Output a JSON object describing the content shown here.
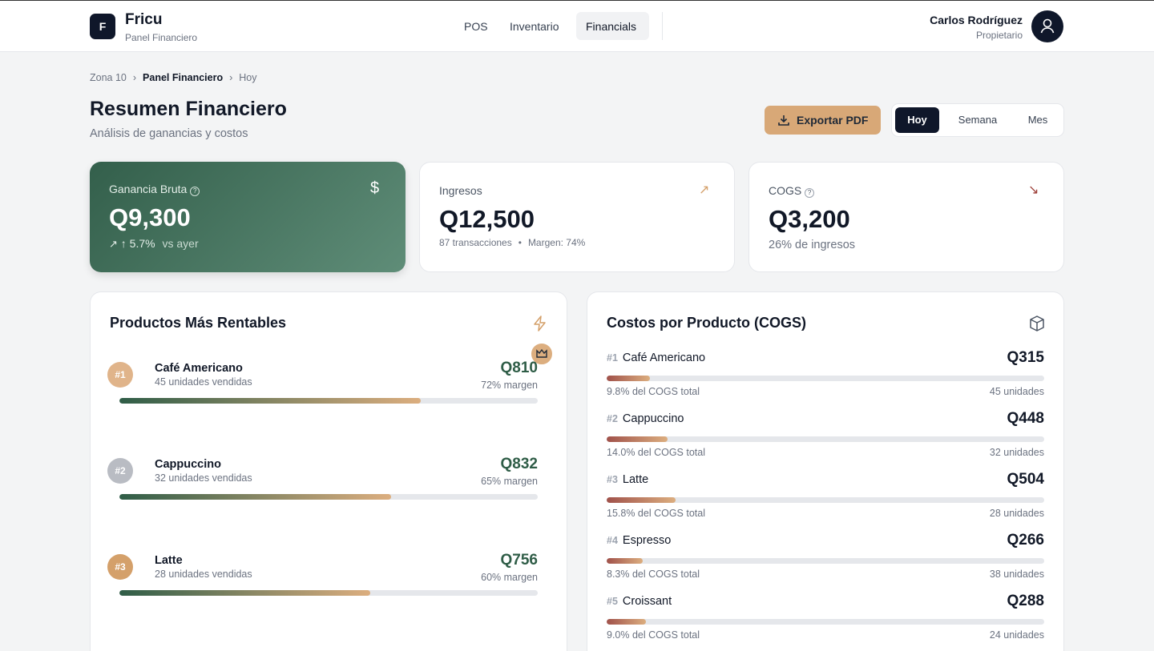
{
  "header": {
    "logo": "F",
    "brand": "Fricu",
    "subtitle": "Panel Financiero",
    "nav": [
      "POS",
      "Inventario",
      "Financials"
    ],
    "user": "Carlos Rodríguez",
    "role": "Propietario"
  },
  "breadcrumb": [
    "Zona 10",
    "Panel Financiero",
    "Hoy"
  ],
  "page": {
    "title": "Resumen Financiero",
    "subtitle": "Análisis de ganancias y costos",
    "export": "Exportar PDF",
    "periods": [
      "Hoy",
      "Semana",
      "Mes"
    ]
  },
  "cards": {
    "gross": {
      "label": "Ganancia Bruta",
      "value": "Q9,300",
      "change": "↑ 5.7%",
      "compare": "vs ayer"
    },
    "income": {
      "label": "Ingresos",
      "value": "Q12,500",
      "transactions": "87 transacciones",
      "margin": "Margen: 74%"
    },
    "cogs": {
      "label": "COGS",
      "value": "Q3,200",
      "share": "26% de ingresos"
    }
  },
  "top_products": {
    "title": "Productos Más Rentables",
    "items": [
      {
        "rank": "#1",
        "name": "Café Americano",
        "units": "45 unidades vendidas",
        "amount": "Q810",
        "margin": {
          "value": 72,
          "label": "72% margen"
        }
      },
      {
        "rank": "#2",
        "name": "Cappuccino",
        "units": "32 unidades vendidas",
        "amount": "Q832",
        "margin": {
          "value": 65,
          "label": "65% margen"
        }
      },
      {
        "rank": "#3",
        "name": "Latte",
        "units": "28 unidades vendidas",
        "amount": "Q756",
        "margin": {
          "value": 60,
          "label": "60% margen"
        }
      }
    ]
  },
  "cogs_products": {
    "title": "Costos por Producto (COGS)",
    "items": [
      {
        "rank": "#1",
        "name": "Café Americano",
        "amount": "Q315",
        "share": {
          "value": 9.8,
          "label": "9.8% del COGS total"
        },
        "units": "45 unidades"
      },
      {
        "rank": "#2",
        "name": "Cappuccino",
        "amount": "Q448",
        "share": {
          "value": 14.0,
          "label": "14.0% del COGS total"
        },
        "units": "32 unidades"
      },
      {
        "rank": "#3",
        "name": "Latte",
        "amount": "Q504",
        "share": {
          "value": 15.8,
          "label": "15.8% del COGS total"
        },
        "units": "28 unidades"
      },
      {
        "rank": "#4",
        "name": "Espresso",
        "amount": "Q266",
        "share": {
          "value": 8.3,
          "label": "8.3% del COGS total"
        },
        "units": "38 unidades"
      },
      {
        "rank": "#5",
        "name": "Croissant",
        "amount": "Q288",
        "share": {
          "value": 9.0,
          "label": "9.0% del COGS total"
        },
        "units": "24 unidades"
      }
    ]
  }
}
